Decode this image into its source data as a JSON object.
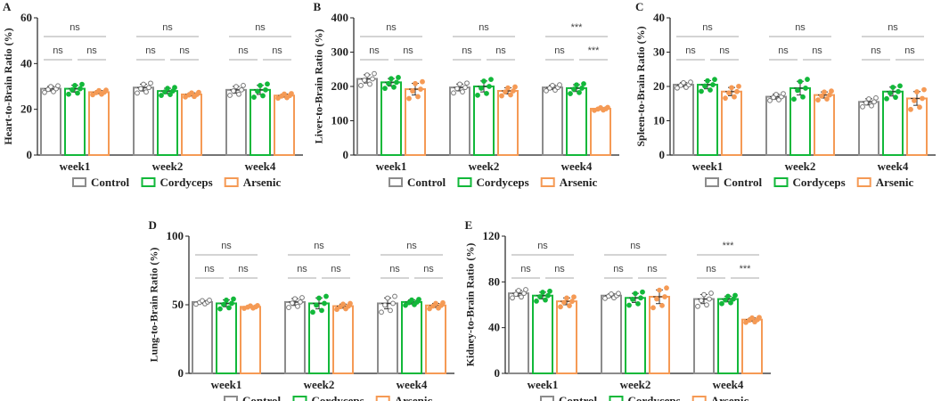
{
  "chart_data": [
    {
      "panel": "A",
      "type": "bar",
      "ylabel": "Heart-to-Brain Ratio (%)",
      "ylim": [
        0,
        60
      ],
      "yticks": [
        0,
        20,
        40,
        60
      ],
      "categories": [
        "week1",
        "week2",
        "week4"
      ],
      "series": [
        {
          "name": "Control",
          "values": [
            29,
            29.5,
            28.5
          ],
          "sem": [
            1,
            1.5,
            1.5
          ]
        },
        {
          "name": "Cordyceps",
          "values": [
            29,
            28,
            28.5
          ],
          "sem": [
            1.5,
            1.2,
            2
          ]
        },
        {
          "name": "Arsenic",
          "values": [
            27.5,
            26.5,
            26
          ],
          "sem": [
            0.7,
            0.7,
            0.7
          ]
        }
      ],
      "significance": [
        [
          "ns",
          "ns",
          "ns"
        ],
        [
          "ns",
          "ns",
          "ns"
        ],
        [
          "ns",
          "ns",
          "ns"
        ]
      ]
    },
    {
      "panel": "B",
      "type": "bar",
      "ylabel": "Liver-to-Brain Ratio (%)",
      "ylim": [
        0,
        400
      ],
      "yticks": [
        0,
        100,
        200,
        300,
        400
      ],
      "categories": [
        "week1",
        "week2",
        "week4"
      ],
      "series": [
        {
          "name": "Control",
          "values": [
            222,
            197,
            197
          ],
          "sem": [
            12,
            10,
            6
          ]
        },
        {
          "name": "Cordyceps",
          "values": [
            212,
            200,
            195
          ],
          "sem": [
            11,
            16,
            10
          ]
        },
        {
          "name": "Arsenic",
          "values": [
            192,
            187,
            135
          ],
          "sem": [
            17,
            9,
            3
          ]
        }
      ],
      "significance": [
        [
          "ns",
          "ns",
          "ns"
        ],
        [
          "ns",
          "ns",
          "ns"
        ],
        [
          "***",
          "ns",
          "***"
        ]
      ]
    },
    {
      "panel": "C",
      "type": "bar",
      "ylabel": "Spleen-to-Brain Ratio (%)",
      "ylim": [
        0,
        40
      ],
      "yticks": [
        0,
        10,
        20,
        30,
        40
      ],
      "categories": [
        "week1",
        "week2",
        "week4"
      ],
      "series": [
        {
          "name": "Control",
          "values": [
            20.5,
            17,
            15.5
          ],
          "sem": [
            0.6,
            0.7,
            0.9
          ]
        },
        {
          "name": "Cordyceps",
          "values": [
            20.5,
            19.5,
            18.5
          ],
          "sem": [
            1.2,
            2,
            1.3
          ]
        },
        {
          "name": "Arsenic",
          "values": [
            18.5,
            17.5,
            16.5
          ],
          "sem": [
            1.2,
            0.9,
            2
          ]
        }
      ],
      "significance": [
        [
          "ns",
          "ns",
          "ns"
        ],
        [
          "ns",
          "ns",
          "ns"
        ],
        [
          "ns",
          "ns",
          "ns"
        ]
      ]
    },
    {
      "panel": "D",
      "type": "bar",
      "ylabel": "Lung-to-Brain Ratio (%)",
      "ylim": [
        0,
        100
      ],
      "yticks": [
        0,
        50,
        100
      ],
      "categories": [
        "week1",
        "week2",
        "week4"
      ],
      "series": [
        {
          "name": "Control",
          "values": [
            52,
            52,
            51
          ],
          "sem": [
            1,
            2.5,
            4
          ]
        },
        {
          "name": "Cordyceps",
          "values": [
            51,
            51,
            52
          ],
          "sem": [
            2.5,
            4,
            1.5
          ]
        },
        {
          "name": "Arsenic",
          "values": [
            48.5,
            49,
            49.5
          ],
          "sem": [
            0.7,
            1.5,
            1.5
          ]
        }
      ],
      "significance": [
        [
          "ns",
          "ns",
          "ns"
        ],
        [
          "ns",
          "ns",
          "ns"
        ],
        [
          "ns",
          "ns",
          "ns"
        ]
      ]
    },
    {
      "panel": "E",
      "type": "bar",
      "ylabel": "Kidney-to-Brain Ratio (%)",
      "ylim": [
        0,
        120
      ],
      "yticks": [
        0,
        40,
        80,
        120
      ],
      "categories": [
        "week1",
        "week2",
        "week4"
      ],
      "series": [
        {
          "name": "Control",
          "values": [
            70,
            68,
            65
          ],
          "sem": [
            2.5,
            1.5,
            4
          ]
        },
        {
          "name": "Cordyceps",
          "values": [
            68,
            66,
            65
          ],
          "sem": [
            3,
            4,
            2.5
          ]
        },
        {
          "name": "Arsenic",
          "values": [
            63,
            67,
            47
          ],
          "sem": [
            3,
            6,
            1.5
          ]
        }
      ],
      "significance": [
        [
          "ns",
          "ns",
          "ns"
        ],
        [
          "ns",
          "ns",
          "ns"
        ],
        [
          "***",
          "ns",
          "***"
        ]
      ]
    }
  ],
  "legend": [
    "Control",
    "Cordyceps",
    "Arsenic"
  ],
  "colors": {
    "Control": "#8c8c8c",
    "Cordyceps": "#12b83a",
    "Arsenic": "#f59a55"
  }
}
